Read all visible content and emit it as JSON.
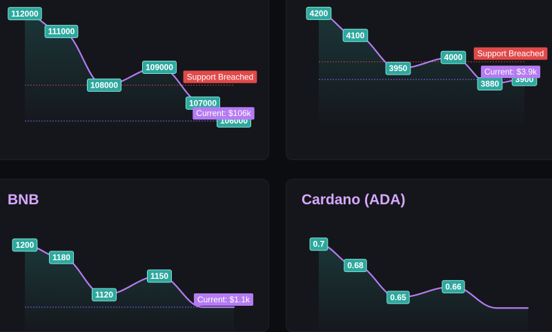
{
  "colors": {
    "line": "#b57bf2",
    "chip_fill": "#2ea89e",
    "chip_border": "#86e4da",
    "chip_text": "#ffffff",
    "support_line": "#e24a4a",
    "support_badge": "#e24a4a",
    "current_line": "#8b6bff",
    "current_badge": "#b57bf2",
    "title": "#d6a8ff"
  },
  "chart_data": [
    {
      "id": "btc",
      "type": "area",
      "title": "",
      "values": [
        112000,
        111000,
        108000,
        109000,
        107000,
        106000
      ],
      "value_labels": [
        "112000",
        "111000",
        "108000",
        "109000",
        "107000",
        "106000"
      ],
      "ylim": [
        105700,
        112300
      ],
      "support": {
        "value": 108000,
        "label": "Support Breached"
      },
      "current": {
        "value": 106000,
        "label": "Current: $106k"
      },
      "grid": false
    },
    {
      "id": "eth",
      "type": "area",
      "title": "",
      "values": [
        4200,
        4100,
        3950,
        4000,
        3880,
        3900
      ],
      "value_labels": [
        "4200",
        "4100",
        "3950",
        "4000",
        "3880",
        "3900"
      ],
      "ylim": [
        3800,
        4220
      ],
      "support": {
        "value": 3980,
        "label": "Support Breached"
      },
      "current": {
        "value": 3900,
        "label": "Current: $3.9k"
      },
      "grid": false
    },
    {
      "id": "bnb",
      "type": "area",
      "title": "BNB",
      "values": [
        1200,
        1180,
        1120,
        1150,
        1100,
        1100
      ],
      "value_labels": [
        "1200",
        "1180",
        "1120",
        "1150",
        "",
        ""
      ],
      "ylim": [
        1090,
        1210
      ],
      "support": null,
      "current": {
        "value": 1100,
        "label": "Current: $1.1k"
      },
      "grid": false
    },
    {
      "id": "ada",
      "type": "area",
      "title": "Cardano (ADA)",
      "values": [
        0.7,
        0.68,
        0.65,
        0.66,
        0.64,
        0.64
      ],
      "value_labels": [
        "0.7",
        "0.68",
        "0.65",
        "0.66",
        "",
        ""
      ],
      "ylim": [
        0.635,
        0.705
      ],
      "support": null,
      "current": null,
      "grid": false
    }
  ]
}
